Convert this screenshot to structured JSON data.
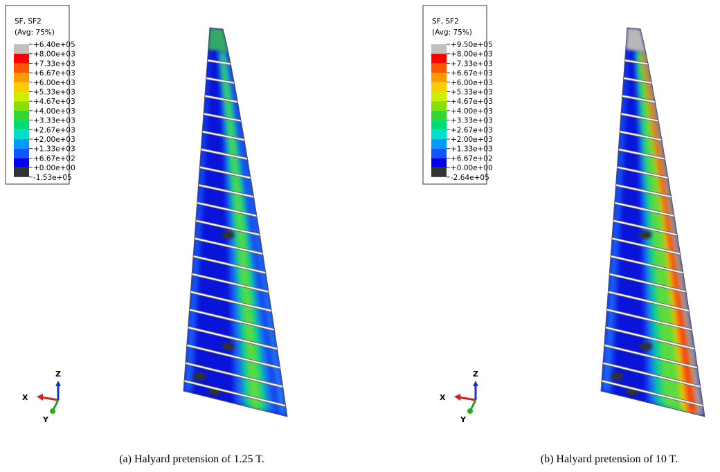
{
  "panels": [
    {
      "legend": {
        "title": "SF, SF2",
        "subtitle": "(Avg: 75%)",
        "labels": [
          "+6.40e+05",
          "+8.00e+03",
          "+7.33e+03",
          "+6.67e+03",
          "+6.00e+03",
          "+5.33e+03",
          "+4.67e+03",
          "+4.00e+03",
          "+3.33e+03",
          "+2.67e+03",
          "+2.00e+03",
          "+1.33e+03",
          "+6.67e+02",
          "+0.00e+00",
          "-1.53e+05"
        ]
      },
      "triad": {
        "x": "X",
        "y": "Y",
        "z": "Z"
      },
      "caption": "(a)  Halyard pretension of 1.25 T."
    },
    {
      "legend": {
        "title": "SF, SF2",
        "subtitle": "(Avg: 75%)",
        "labels": [
          "+9.50e+05",
          "+8.00e+03",
          "+7.33e+03",
          "+6.67e+03",
          "+6.00e+03",
          "+5.33e+03",
          "+4.67e+03",
          "+4.00e+03",
          "+3.33e+03",
          "+2.67e+03",
          "+2.00e+03",
          "+1.33e+03",
          "+6.67e+02",
          "+0.00e+00",
          "-2.64e+05"
        ]
      },
      "triad": {
        "x": "X",
        "y": "Y",
        "z": "Z"
      },
      "caption": "(b)  Halyard pretension of 10 T."
    }
  ],
  "legend_colors": [
    "#c0c0c0",
    "#ff0000",
    "#ff5500",
    "#ff9900",
    "#ffcc00",
    "#ccee00",
    "#88e000",
    "#33d633",
    "#00dd77",
    "#00e0cc",
    "#0099ff",
    "#1155ff",
    "#0000ee",
    "#333333"
  ]
}
